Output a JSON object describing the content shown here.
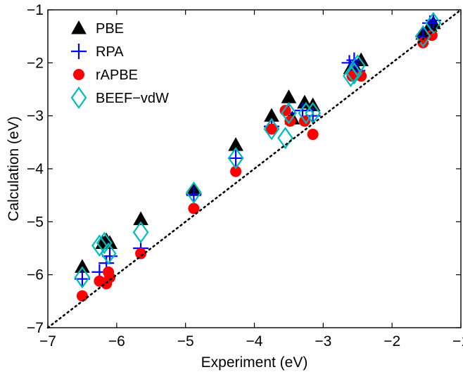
{
  "chart_data": {
    "type": "scatter",
    "xlabel": "Experiment (eV)",
    "ylabel": "Calculation (eV)",
    "xlim": [
      -7,
      -1
    ],
    "ylim": [
      -7,
      -1
    ],
    "x_ticks": [
      -7,
      -6,
      -5,
      -4,
      -3,
      -2,
      -1
    ],
    "y_ticks": [
      -7,
      -6,
      -5,
      -4,
      -3,
      -2,
      -1
    ],
    "x_tick_labels": [
      "−7",
      "−6",
      "−5",
      "−4",
      "−3",
      "−2",
      "−1"
    ],
    "y_tick_labels": [
      "−7",
      "−6",
      "−5",
      "−4",
      "−3",
      "−2",
      "−1"
    ],
    "grid": false,
    "legend_position": "top-left",
    "reference_line": {
      "style": "dotted",
      "from": [
        -7,
        -7
      ],
      "to": [
        -1,
        -1
      ],
      "color": "#000000"
    },
    "series": [
      {
        "name": "PBE",
        "marker": "triangle",
        "color": "#000000",
        "points": [
          [
            -6.5,
            -5.85
          ],
          [
            -6.2,
            -5.4
          ],
          [
            -6.15,
            -5.35
          ],
          [
            -6.1,
            -5.4
          ],
          [
            -5.65,
            -4.95
          ],
          [
            -4.88,
            -4.4
          ],
          [
            -4.27,
            -3.55
          ],
          [
            -3.75,
            -3.0
          ],
          [
            -3.5,
            -2.65
          ],
          [
            -3.45,
            -3.05
          ],
          [
            -3.27,
            -2.75
          ],
          [
            -3.15,
            -2.8
          ],
          [
            -2.6,
            -2.1
          ],
          [
            -2.55,
            -2.05
          ],
          [
            -2.45,
            -1.95
          ],
          [
            -1.55,
            -1.45
          ],
          [
            -1.45,
            -1.3
          ],
          [
            -1.4,
            -1.25
          ]
        ]
      },
      {
        "name": "RPA",
        "marker": "plus",
        "color": "#0000ff",
        "points": [
          [
            -6.5,
            -6.08
          ],
          [
            -6.25,
            -5.95
          ],
          [
            -6.15,
            -5.78
          ],
          [
            -6.1,
            -5.65
          ],
          [
            -5.65,
            -5.5
          ],
          [
            -4.88,
            -4.48
          ],
          [
            -4.27,
            -3.8
          ],
          [
            -3.75,
            -3.2
          ],
          [
            -3.5,
            -2.95
          ],
          [
            -3.3,
            -2.9
          ],
          [
            -3.15,
            -3.0
          ],
          [
            -2.62,
            -2.0
          ],
          [
            -2.55,
            -1.95
          ],
          [
            -2.5,
            -2.15
          ],
          [
            -1.55,
            -1.5
          ],
          [
            -1.45,
            -1.25
          ],
          [
            -1.4,
            -1.2
          ]
        ]
      },
      {
        "name": "rAPBE",
        "marker": "circle",
        "color": "#ff0000",
        "points": [
          [
            -6.5,
            -6.4
          ],
          [
            -6.25,
            -6.12
          ],
          [
            -6.15,
            -6.17
          ],
          [
            -6.12,
            -5.95
          ],
          [
            -6.1,
            -6.05
          ],
          [
            -5.65,
            -5.6
          ],
          [
            -4.88,
            -4.75
          ],
          [
            -4.27,
            -4.05
          ],
          [
            -3.75,
            -3.25
          ],
          [
            -3.55,
            -2.9
          ],
          [
            -3.48,
            -3.1
          ],
          [
            -3.27,
            -3.1
          ],
          [
            -3.15,
            -3.35
          ],
          [
            -2.58,
            -2.25
          ],
          [
            -2.45,
            -2.25
          ],
          [
            -1.55,
            -1.62
          ],
          [
            -1.42,
            -1.48
          ]
        ]
      },
      {
        "name": "BEEF−vdW",
        "marker": "diamond",
        "color": "#00bbbb",
        "points": [
          [
            -6.5,
            -6.05
          ],
          [
            -6.25,
            -5.45
          ],
          [
            -6.18,
            -5.4
          ],
          [
            -6.12,
            -5.6
          ],
          [
            -5.65,
            -5.2
          ],
          [
            -4.88,
            -4.45
          ],
          [
            -4.27,
            -3.8
          ],
          [
            -3.75,
            -3.25
          ],
          [
            -3.55,
            -3.42
          ],
          [
            -3.5,
            -2.95
          ],
          [
            -3.25,
            -2.95
          ],
          [
            -3.15,
            -2.95
          ],
          [
            -2.6,
            -2.25
          ],
          [
            -2.55,
            -2.2
          ],
          [
            -2.5,
            -2.05
          ],
          [
            -1.55,
            -1.5
          ],
          [
            -1.4,
            -1.25
          ]
        ]
      }
    ]
  }
}
